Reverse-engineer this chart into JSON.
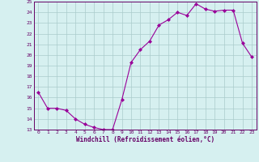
{
  "x": [
    0,
    1,
    2,
    3,
    4,
    5,
    6,
    7,
    8,
    9,
    10,
    11,
    12,
    13,
    14,
    15,
    16,
    17,
    18,
    19,
    20,
    21,
    22,
    23
  ],
  "y": [
    16.5,
    15.0,
    15.0,
    14.8,
    14.0,
    13.5,
    13.2,
    13.0,
    13.0,
    15.8,
    19.3,
    20.5,
    21.3,
    22.8,
    23.3,
    24.0,
    23.7,
    24.8,
    24.3,
    24.1,
    24.2,
    24.2,
    21.1,
    19.8
  ],
  "line_color": "#990099",
  "marker": "D",
  "marker_size": 2,
  "bg_color": "#d6f0f0",
  "grid_color": "#aacccc",
  "xlabel": "Windchill (Refroidissement éolien,°C)",
  "xlabel_color": "#660066",
  "tick_color": "#660066",
  "ylim": [
    13,
    25
  ],
  "xlim": [
    -0.5,
    23.5
  ],
  "yticks": [
    13,
    14,
    15,
    16,
    17,
    18,
    19,
    20,
    21,
    22,
    23,
    24,
    25
  ],
  "xticks": [
    0,
    1,
    2,
    3,
    4,
    5,
    6,
    7,
    8,
    9,
    10,
    11,
    12,
    13,
    14,
    15,
    16,
    17,
    18,
    19,
    20,
    21,
    22,
    23
  ],
  "spine_color": "#660066"
}
